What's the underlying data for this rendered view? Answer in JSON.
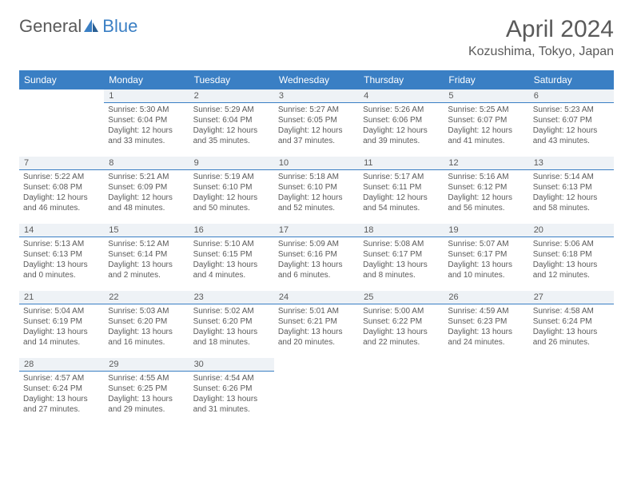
{
  "logo": {
    "part1": "General",
    "part2": "Blue"
  },
  "title": "April 2024",
  "location": "Kozushima, Tokyo, Japan",
  "colors": {
    "header_bg": "#3a7fc4",
    "header_text": "#ffffff",
    "daybar_bg": "#eef2f6",
    "daybar_border": "#3a7fc4",
    "text": "#5a5a5a",
    "page_bg": "#ffffff"
  },
  "day_headers": [
    "Sunday",
    "Monday",
    "Tuesday",
    "Wednesday",
    "Thursday",
    "Friday",
    "Saturday"
  ],
  "weeks": [
    [
      null,
      {
        "n": "1",
        "sr": "Sunrise: 5:30 AM",
        "ss": "Sunset: 6:04 PM",
        "dl1": "Daylight: 12 hours",
        "dl2": "and 33 minutes."
      },
      {
        "n": "2",
        "sr": "Sunrise: 5:29 AM",
        "ss": "Sunset: 6:04 PM",
        "dl1": "Daylight: 12 hours",
        "dl2": "and 35 minutes."
      },
      {
        "n": "3",
        "sr": "Sunrise: 5:27 AM",
        "ss": "Sunset: 6:05 PM",
        "dl1": "Daylight: 12 hours",
        "dl2": "and 37 minutes."
      },
      {
        "n": "4",
        "sr": "Sunrise: 5:26 AM",
        "ss": "Sunset: 6:06 PM",
        "dl1": "Daylight: 12 hours",
        "dl2": "and 39 minutes."
      },
      {
        "n": "5",
        "sr": "Sunrise: 5:25 AM",
        "ss": "Sunset: 6:07 PM",
        "dl1": "Daylight: 12 hours",
        "dl2": "and 41 minutes."
      },
      {
        "n": "6",
        "sr": "Sunrise: 5:23 AM",
        "ss": "Sunset: 6:07 PM",
        "dl1": "Daylight: 12 hours",
        "dl2": "and 43 minutes."
      }
    ],
    [
      {
        "n": "7",
        "sr": "Sunrise: 5:22 AM",
        "ss": "Sunset: 6:08 PM",
        "dl1": "Daylight: 12 hours",
        "dl2": "and 46 minutes."
      },
      {
        "n": "8",
        "sr": "Sunrise: 5:21 AM",
        "ss": "Sunset: 6:09 PM",
        "dl1": "Daylight: 12 hours",
        "dl2": "and 48 minutes."
      },
      {
        "n": "9",
        "sr": "Sunrise: 5:19 AM",
        "ss": "Sunset: 6:10 PM",
        "dl1": "Daylight: 12 hours",
        "dl2": "and 50 minutes."
      },
      {
        "n": "10",
        "sr": "Sunrise: 5:18 AM",
        "ss": "Sunset: 6:10 PM",
        "dl1": "Daylight: 12 hours",
        "dl2": "and 52 minutes."
      },
      {
        "n": "11",
        "sr": "Sunrise: 5:17 AM",
        "ss": "Sunset: 6:11 PM",
        "dl1": "Daylight: 12 hours",
        "dl2": "and 54 minutes."
      },
      {
        "n": "12",
        "sr": "Sunrise: 5:16 AM",
        "ss": "Sunset: 6:12 PM",
        "dl1": "Daylight: 12 hours",
        "dl2": "and 56 minutes."
      },
      {
        "n": "13",
        "sr": "Sunrise: 5:14 AM",
        "ss": "Sunset: 6:13 PM",
        "dl1": "Daylight: 12 hours",
        "dl2": "and 58 minutes."
      }
    ],
    [
      {
        "n": "14",
        "sr": "Sunrise: 5:13 AM",
        "ss": "Sunset: 6:13 PM",
        "dl1": "Daylight: 13 hours",
        "dl2": "and 0 minutes."
      },
      {
        "n": "15",
        "sr": "Sunrise: 5:12 AM",
        "ss": "Sunset: 6:14 PM",
        "dl1": "Daylight: 13 hours",
        "dl2": "and 2 minutes."
      },
      {
        "n": "16",
        "sr": "Sunrise: 5:10 AM",
        "ss": "Sunset: 6:15 PM",
        "dl1": "Daylight: 13 hours",
        "dl2": "and 4 minutes."
      },
      {
        "n": "17",
        "sr": "Sunrise: 5:09 AM",
        "ss": "Sunset: 6:16 PM",
        "dl1": "Daylight: 13 hours",
        "dl2": "and 6 minutes."
      },
      {
        "n": "18",
        "sr": "Sunrise: 5:08 AM",
        "ss": "Sunset: 6:17 PM",
        "dl1": "Daylight: 13 hours",
        "dl2": "and 8 minutes."
      },
      {
        "n": "19",
        "sr": "Sunrise: 5:07 AM",
        "ss": "Sunset: 6:17 PM",
        "dl1": "Daylight: 13 hours",
        "dl2": "and 10 minutes."
      },
      {
        "n": "20",
        "sr": "Sunrise: 5:06 AM",
        "ss": "Sunset: 6:18 PM",
        "dl1": "Daylight: 13 hours",
        "dl2": "and 12 minutes."
      }
    ],
    [
      {
        "n": "21",
        "sr": "Sunrise: 5:04 AM",
        "ss": "Sunset: 6:19 PM",
        "dl1": "Daylight: 13 hours",
        "dl2": "and 14 minutes."
      },
      {
        "n": "22",
        "sr": "Sunrise: 5:03 AM",
        "ss": "Sunset: 6:20 PM",
        "dl1": "Daylight: 13 hours",
        "dl2": "and 16 minutes."
      },
      {
        "n": "23",
        "sr": "Sunrise: 5:02 AM",
        "ss": "Sunset: 6:20 PM",
        "dl1": "Daylight: 13 hours",
        "dl2": "and 18 minutes."
      },
      {
        "n": "24",
        "sr": "Sunrise: 5:01 AM",
        "ss": "Sunset: 6:21 PM",
        "dl1": "Daylight: 13 hours",
        "dl2": "and 20 minutes."
      },
      {
        "n": "25",
        "sr": "Sunrise: 5:00 AM",
        "ss": "Sunset: 6:22 PM",
        "dl1": "Daylight: 13 hours",
        "dl2": "and 22 minutes."
      },
      {
        "n": "26",
        "sr": "Sunrise: 4:59 AM",
        "ss": "Sunset: 6:23 PM",
        "dl1": "Daylight: 13 hours",
        "dl2": "and 24 minutes."
      },
      {
        "n": "27",
        "sr": "Sunrise: 4:58 AM",
        "ss": "Sunset: 6:24 PM",
        "dl1": "Daylight: 13 hours",
        "dl2": "and 26 minutes."
      }
    ],
    [
      {
        "n": "28",
        "sr": "Sunrise: 4:57 AM",
        "ss": "Sunset: 6:24 PM",
        "dl1": "Daylight: 13 hours",
        "dl2": "and 27 minutes."
      },
      {
        "n": "29",
        "sr": "Sunrise: 4:55 AM",
        "ss": "Sunset: 6:25 PM",
        "dl1": "Daylight: 13 hours",
        "dl2": "and 29 minutes."
      },
      {
        "n": "30",
        "sr": "Sunrise: 4:54 AM",
        "ss": "Sunset: 6:26 PM",
        "dl1": "Daylight: 13 hours",
        "dl2": "and 31 minutes."
      },
      null,
      null,
      null,
      null
    ]
  ]
}
